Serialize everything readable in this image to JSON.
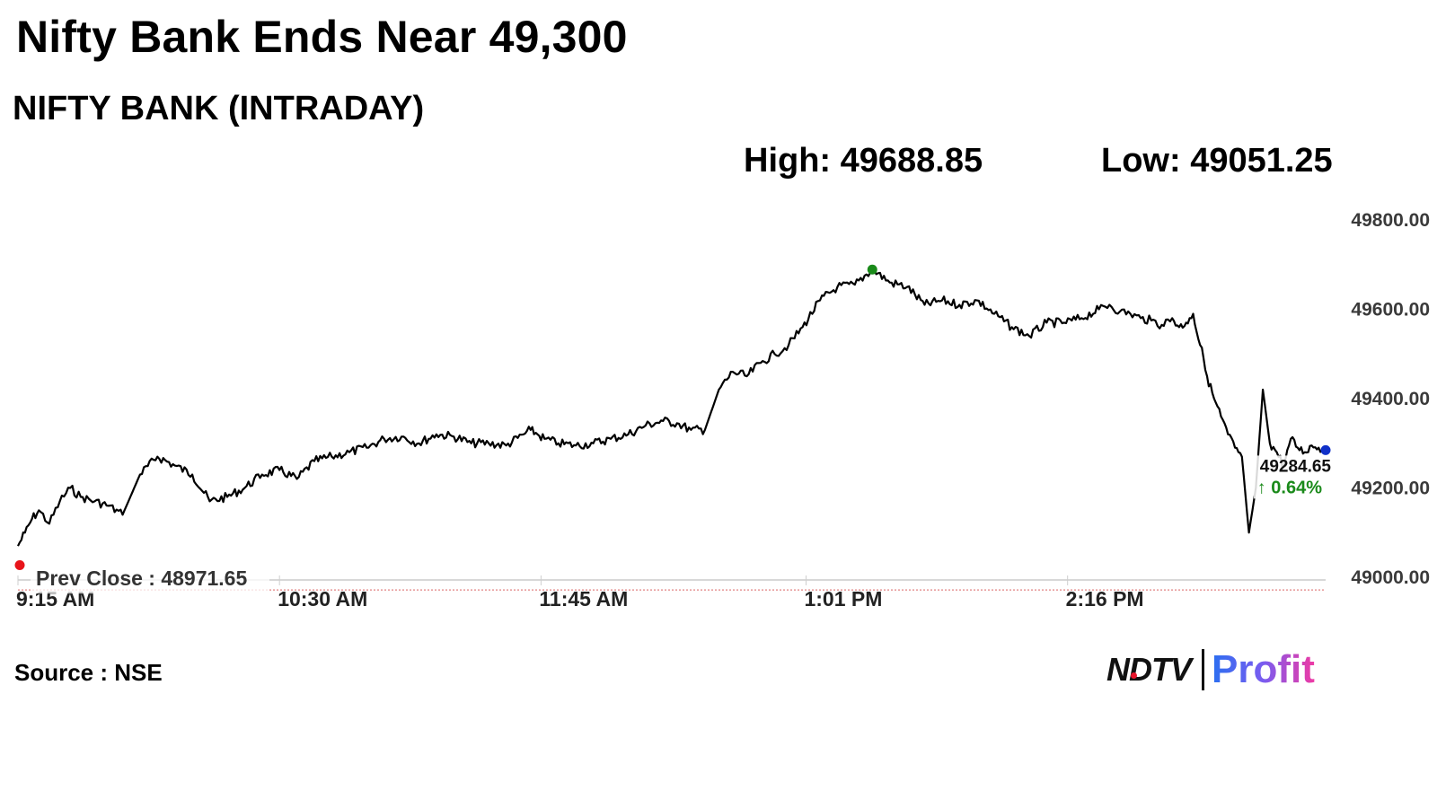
{
  "headline": "Nifty Bank Ends Near 49,300",
  "subtitle": "NIFTY BANK (INTRADAY)",
  "high_label": "High: 49688.85",
  "low_label": "Low: 49051.25",
  "source": "Source : NSE",
  "logo": {
    "brand": "NDTV",
    "product": "Profit"
  },
  "colors": {
    "line": "#000000",
    "high_marker": "#1a8a1a",
    "low_marker": "#e8141a",
    "last_marker": "#1030c8",
    "prev_close_line": "#e08080",
    "change_up": "#1a8a1a"
  },
  "chart_data": {
    "type": "line",
    "title": "NIFTY BANK (INTRADAY)",
    "ylim": [
      49000,
      49800
    ],
    "y_ticks": [
      "49800.00",
      "49600.00",
      "49400.00",
      "49200.00",
      "49000.00"
    ],
    "x_ticks": [
      {
        "label": "9:15 AM",
        "value": "09:15"
      },
      {
        "label": "10:30 AM",
        "value": "10:30"
      },
      {
        "label": "11:45 AM",
        "value": "11:45"
      },
      {
        "label": "1:01 PM",
        "value": "13:01"
      },
      {
        "label": "2:16 PM",
        "value": "14:16"
      }
    ],
    "x_range": [
      "09:15",
      "15:30"
    ],
    "prev_close": 48971.65,
    "prev_close_label": "Prev Close : 48971.65",
    "high": 49688.85,
    "low": 49051.25,
    "last": 49284.65,
    "last_label": "49284.65",
    "change_label": "↑ 0.64%",
    "series": [
      {
        "x": [
          "09:15",
          "09:17",
          "09:19",
          "09:21",
          "09:24",
          "09:27",
          "09:30",
          "09:33",
          "09:37",
          "09:41",
          "09:45",
          "09:50",
          "09:55",
          "10:00",
          "10:05",
          "10:10",
          "10:15",
          "10:20",
          "10:25",
          "10:30",
          "10:35",
          "10:40",
          "10:45",
          "10:50",
          "10:55",
          "11:00",
          "11:05",
          "11:10",
          "11:15",
          "11:20",
          "11:25",
          "11:30",
          "11:35",
          "11:40",
          "11:42",
          "11:44",
          "11:46",
          "11:50",
          "11:55",
          "12:00",
          "12:05",
          "12:10",
          "12:15",
          "12:20",
          "12:24",
          "12:28",
          "12:32",
          "12:36",
          "12:40",
          "12:44",
          "12:48",
          "12:52",
          "12:56",
          "13:00",
          "13:05",
          "13:10",
          "13:15",
          "13:20",
          "13:25",
          "13:30",
          "13:35",
          "13:40",
          "13:45",
          "13:50",
          "13:55",
          "14:00",
          "14:05",
          "14:10",
          "14:15",
          "14:20",
          "14:25",
          "14:28",
          "14:31",
          "14:34",
          "14:37",
          "14:40",
          "14:43",
          "14:46",
          "14:48",
          "14:50",
          "14:51",
          "14:52",
          "14:53",
          "14:54",
          "14:55",
          "14:56",
          "14:58",
          "15:00",
          "15:02",
          "15:04",
          "15:06",
          "15:08",
          "15:10",
          "15:12",
          "15:14",
          "15:16",
          "15:18",
          "15:20",
          "15:22",
          "15:24",
          "15:26",
          "15:28",
          "15:30"
        ],
        "y": [
          49070,
          49100,
          49130,
          49150,
          49120,
          49170,
          49200,
          49180,
          49170,
          49160,
          49140,
          49230,
          49270,
          49250,
          49230,
          49170,
          49180,
          49200,
          49230,
          49240,
          49220,
          49260,
          49270,
          49280,
          49290,
          49310,
          49315,
          49300,
          49320,
          49315,
          49300,
          49300,
          49295,
          49320,
          49330,
          49320,
          49310,
          49300,
          49295,
          49300,
          49310,
          49320,
          49340,
          49350,
          49345,
          49330,
          49330,
          49420,
          49460,
          49450,
          49480,
          49500,
          49520,
          49560,
          49620,
          49650,
          49655,
          49690,
          49660,
          49650,
          49610,
          49620,
          49610,
          49620,
          49590,
          49560,
          49540,
          49570,
          49570,
          49580,
          49600,
          49610,
          49595,
          49590,
          49580,
          49575,
          49565,
          49580,
          49560,
          49570,
          49580,
          49590,
          49550,
          49520,
          49490,
          49450,
          49400,
          49360,
          49320,
          49290,
          49270,
          49100,
          49200,
          49420,
          49300,
          49280,
          49250,
          49310,
          49290,
          49280,
          49295,
          49290,
          49285
        ]
      }
    ]
  }
}
